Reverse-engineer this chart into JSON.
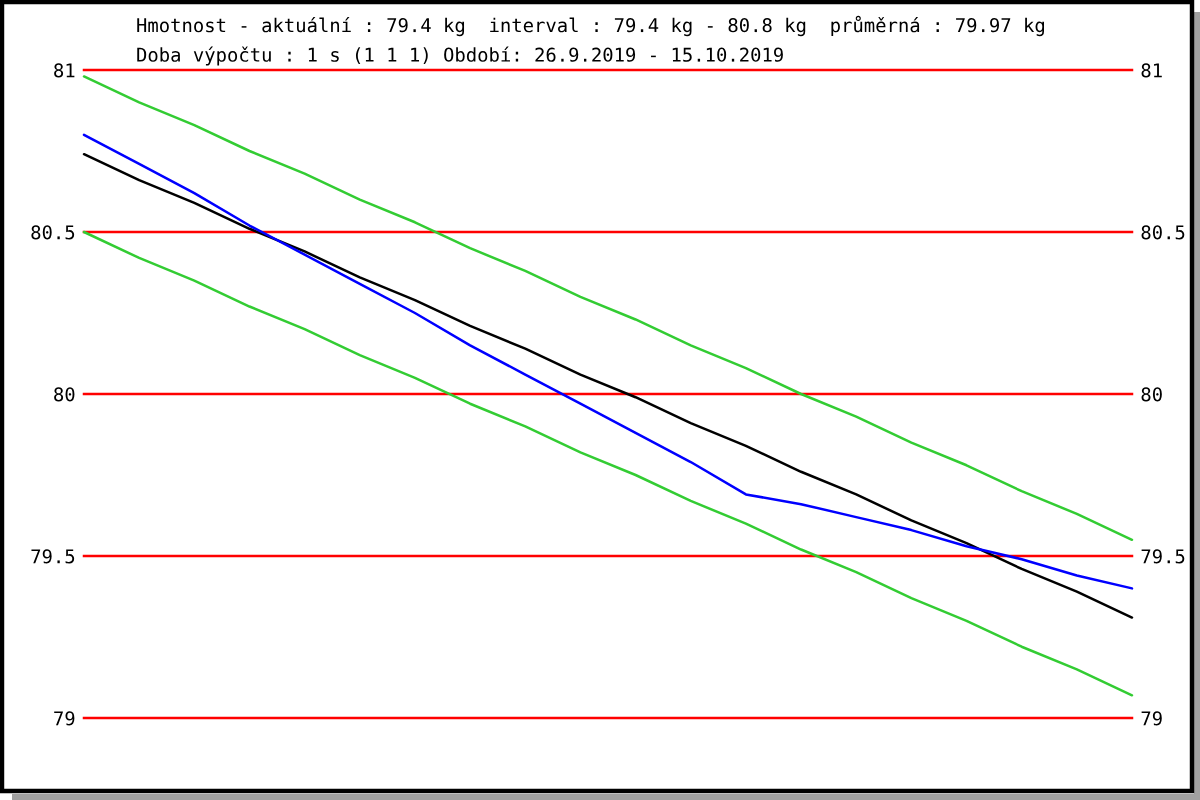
{
  "chart_data": {
    "type": "line",
    "title": "Hmotnost - aktuální : 79.4 kg  interval : 79.4 kg - 80.8 kg  průměrná : 79.97 kg",
    "subtitle": "Doba výpočtu : 1 s (1 1 1) Období: 26.9.2019 - 15.10.2019",
    "categories": [
      null,
      null,
      null,
      null,
      null,
      null,
      null,
      null,
      null,
      null,
      null,
      null,
      null,
      null,
      null,
      null,
      null,
      null,
      null,
      null
    ],
    "series": [
      {
        "color": "#33cc33",
        "values": [
          80.98,
          80.9,
          80.83,
          80.75,
          80.68,
          80.6,
          80.53,
          80.45,
          80.38,
          80.3,
          80.23,
          80.15,
          80.08,
          80.0,
          79.93,
          79.85,
          79.78,
          79.7,
          79.63,
          79.55
        ]
      },
      {
        "color": "#33cc33",
        "values": [
          80.5,
          80.42,
          80.35,
          80.27,
          80.2,
          80.12,
          80.05,
          79.97,
          79.9,
          79.82,
          79.75,
          79.67,
          79.6,
          79.52,
          79.45,
          79.37,
          79.3,
          79.22,
          79.15,
          79.07
        ]
      },
      {
        "color": "#000000",
        "values": [
          80.74,
          80.66,
          80.59,
          80.51,
          80.44,
          80.36,
          80.29,
          80.21,
          80.14,
          80.06,
          79.99,
          79.91,
          79.84,
          79.76,
          79.69,
          79.61,
          79.54,
          79.46,
          79.39,
          79.31
        ]
      },
      {
        "color": "#0000ff",
        "values": [
          80.8,
          80.71,
          80.62,
          80.52,
          80.43,
          80.34,
          80.25,
          80.15,
          80.06,
          79.97,
          79.88,
          79.79,
          79.69,
          79.66,
          79.62,
          79.58,
          79.53,
          79.49,
          79.44,
          79.4
        ]
      }
    ],
    "ylim": [
      79,
      81
    ],
    "yticks": [
      79,
      79.5,
      80,
      80.5,
      81
    ],
    "y2lim": [
      79,
      81
    ],
    "y2ticks": [
      79,
      79.5,
      80,
      80.5,
      81
    ],
    "grid": "y",
    "tick_labels": "y"
  }
}
